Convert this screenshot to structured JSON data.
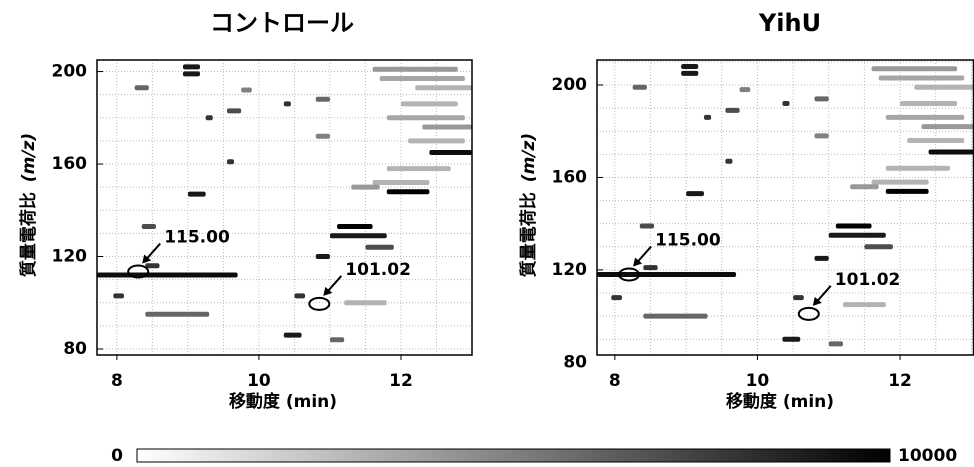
{
  "chart_data": [
    {
      "type": "heatmap",
      "title": "コントロール",
      "xlabel": "移動度 (min)",
      "ylabel": "質量電荷比",
      "ylabel_unit": "(m/z)",
      "xlim": [
        7.72,
        13.0
      ],
      "ylim": [
        77.4,
        205
      ],
      "xticks": [
        8,
        10,
        12
      ],
      "yticks": [
        80,
        120,
        160,
        200
      ],
      "grid_x": [
        8,
        8.5,
        9,
        9.5,
        10,
        10.5,
        11,
        11.5,
        12,
        12.5
      ],
      "grid_y": [
        80,
        90,
        100,
        110,
        120,
        130,
        140,
        150,
        160,
        170,
        180,
        190,
        200
      ],
      "x": [
        8.93,
        8.93,
        11.6,
        11.7,
        12.2,
        12.0,
        11.8,
        12.3,
        12.1,
        12.4,
        11.8,
        11.6,
        11.8,
        11.3,
        8.25,
        9.75,
        10.8,
        9.55,
        10.35,
        9.25,
        9.55,
        9.0,
        8.35,
        11.1,
        11.0,
        11.5,
        8.4,
        7.72,
        10.8,
        7.95,
        10.5,
        8.4,
        10.35,
        11.0,
        11.2,
        10.8
      ],
      "x2": [
        9.17,
        9.17,
        12.8,
        12.9,
        13.0,
        12.8,
        12.9,
        13.0,
        12.9,
        13.0,
        12.7,
        12.4,
        12.4,
        11.7,
        8.45,
        9.9,
        11.0,
        9.75,
        10.45,
        9.35,
        9.65,
        9.25,
        8.55,
        11.6,
        11.8,
        11.9,
        8.6,
        9.7,
        11.0,
        8.1,
        10.65,
        9.3,
        10.6,
        11.2,
        11.8,
        11.0
      ],
      "y": [
        202,
        199,
        201,
        197,
        193,
        186,
        180,
        176,
        170,
        165,
        158,
        152,
        148,
        150,
        193,
        192,
        188,
        183,
        186,
        180,
        161,
        147,
        133,
        133,
        129,
        124,
        116,
        112,
        120,
        103,
        103,
        95,
        86,
        84,
        100,
        172
      ],
      "values": [
        9000,
        9000,
        4000,
        3500,
        3000,
        3000,
        3500,
        4000,
        3000,
        9500,
        3000,
        3000,
        10000,
        4000,
        6000,
        5000,
        6000,
        7000,
        8000,
        8000,
        8000,
        9000,
        7000,
        10000,
        9000,
        7000,
        8000,
        9500,
        9000,
        8000,
        8000,
        6000,
        9000,
        6000,
        3000,
        5000
      ],
      "annotations": [
        {
          "text": "115.00",
          "x": 8.3,
          "y": 113.5
        },
        {
          "text": "101.02",
          "x": 10.85,
          "y": 99.5
        }
      ]
    },
    {
      "type": "heatmap",
      "title": "YihU",
      "xlabel": "移動度 (min)",
      "ylabel": "質量電荷比",
      "ylabel_unit": "(m/z)",
      "xlim": [
        7.75,
        13.03
      ],
      "ylim": [
        83.2,
        210.8
      ],
      "xticks": [
        8,
        10,
        12
      ],
      "yticks": [
        80,
        120,
        160,
        200
      ],
      "grid_x": [
        8,
        8.5,
        9,
        9.5,
        10,
        10.5,
        11,
        11.5,
        12,
        12.5,
        13
      ],
      "grid_y": [
        90,
        100,
        110,
        120,
        130,
        140,
        150,
        160,
        170,
        180,
        190,
        200,
        210
      ],
      "x": [
        8.93,
        8.93,
        11.6,
        11.7,
        12.2,
        12.0,
        11.8,
        12.3,
        12.1,
        12.4,
        11.8,
        11.6,
        11.8,
        11.3,
        8.25,
        9.75,
        10.8,
        9.55,
        10.35,
        9.25,
        9.55,
        9.0,
        8.35,
        11.1,
        11.0,
        11.5,
        8.4,
        7.75,
        10.8,
        7.95,
        10.5,
        8.4,
        10.35,
        11.0,
        11.2,
        10.8
      ],
      "x2": [
        9.17,
        9.17,
        12.8,
        12.9,
        13.03,
        12.8,
        12.9,
        13.03,
        12.9,
        13.03,
        12.7,
        12.4,
        12.4,
        11.7,
        8.45,
        9.9,
        11.0,
        9.75,
        10.45,
        9.35,
        9.65,
        9.25,
        8.55,
        11.6,
        11.8,
        11.9,
        8.6,
        9.7,
        11.0,
        8.1,
        10.65,
        9.3,
        10.6,
        11.2,
        11.8,
        11.0
      ],
      "y": [
        208,
        205,
        207,
        203,
        199,
        192,
        186,
        182,
        176,
        171,
        164,
        158,
        154,
        156,
        199,
        198,
        194,
        189,
        192,
        186,
        167,
        153,
        139,
        139,
        135,
        130,
        121,
        118,
        125,
        108,
        108,
        100,
        90,
        88,
        105,
        178
      ],
      "values": [
        9000,
        9000,
        4000,
        3500,
        3000,
        3000,
        3500,
        4000,
        3000,
        9500,
        3000,
        3000,
        10000,
        4000,
        6000,
        5000,
        6000,
        7000,
        8000,
        8000,
        8000,
        9000,
        7000,
        10000,
        9000,
        7000,
        8000,
        9500,
        9000,
        8000,
        8000,
        6000,
        9000,
        6000,
        3000,
        5000
      ],
      "annotations": [
        {
          "text": "115.00",
          "x": 8.2,
          "y": 118
        },
        {
          "text": "101.02",
          "x": 10.72,
          "y": 101
        }
      ]
    }
  ],
  "colorbar": {
    "range": [
      0,
      10000
    ],
    "ticks": [
      0,
      10000
    ]
  }
}
